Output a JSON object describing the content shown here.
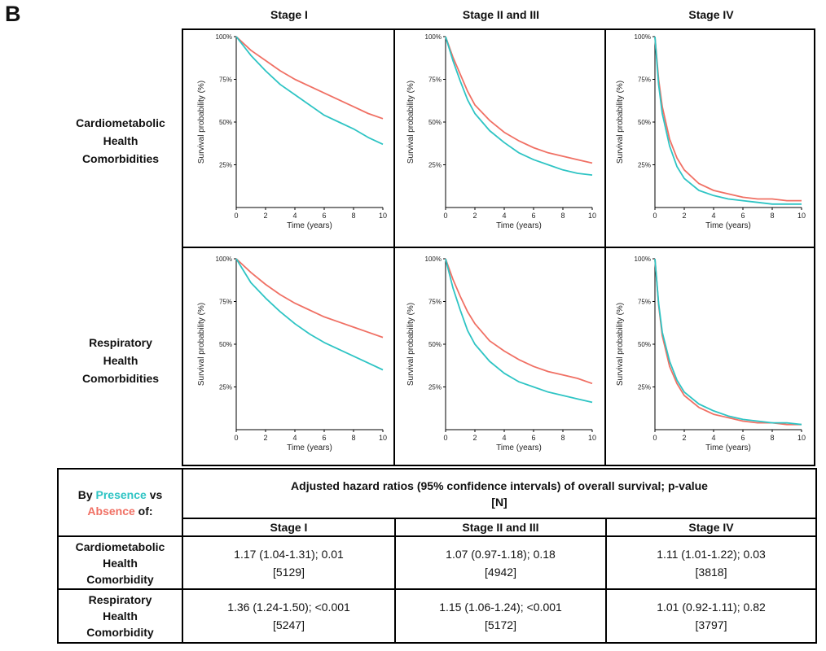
{
  "panel_letter": "B",
  "column_titles": [
    "Stage I",
    "Stage II and III",
    "Stage IV"
  ],
  "row_labels": [
    [
      "Cardiometabolic",
      "Health",
      "Comorbidities"
    ],
    [
      "Respiratory",
      "Health",
      "Comorbidities"
    ]
  ],
  "colors": {
    "presence": "#2ec4c4",
    "absence": "#f07064"
  },
  "chart_data": [
    {
      "type": "line",
      "row": "Cardiometabolic Health Comorbidities",
      "stage": "Stage I",
      "xlabel": "Time (years)",
      "ylabel": "Survival probability (%)",
      "xlim": [
        0,
        10
      ],
      "ylim": [
        0,
        100
      ],
      "xticks": [
        "0",
        "2",
        "4",
        "6",
        "8",
        "10"
      ],
      "yticks": [
        "25%",
        "50%",
        "75%",
        "100%"
      ],
      "x": [
        0,
        1,
        2,
        3,
        4,
        5,
        6,
        7,
        8,
        9,
        10
      ],
      "series": [
        {
          "name": "Presence",
          "color": "#2ec4c4",
          "values": [
            100,
            89,
            80,
            72,
            66,
            60,
            54,
            50,
            46,
            41,
            37
          ]
        },
        {
          "name": "Absence",
          "color": "#f07064",
          "values": [
            100,
            92,
            86,
            80,
            75,
            71,
            67,
            63,
            59,
            55,
            52
          ]
        }
      ]
    },
    {
      "type": "line",
      "row": "Cardiometabolic Health Comorbidities",
      "stage": "Stage II and III",
      "xlabel": "Time (years)",
      "ylabel": "Survival probability (%)",
      "xlim": [
        0,
        10
      ],
      "ylim": [
        0,
        100
      ],
      "xticks": [
        "0",
        "2",
        "4",
        "6",
        "8",
        "10"
      ],
      "yticks": [
        "25%",
        "50%",
        "75%",
        "100%"
      ],
      "x": [
        0,
        0.5,
        1,
        1.5,
        2,
        3,
        4,
        5,
        6,
        7,
        8,
        9,
        10
      ],
      "series": [
        {
          "name": "Presence",
          "color": "#2ec4c4",
          "values": [
            100,
            86,
            74,
            63,
            55,
            45,
            38,
            32,
            28,
            25,
            22,
            20,
            19
          ]
        },
        {
          "name": "Absence",
          "color": "#f07064",
          "values": [
            100,
            88,
            78,
            68,
            60,
            51,
            44,
            39,
            35,
            32,
            30,
            28,
            26
          ]
        }
      ]
    },
    {
      "type": "line",
      "row": "Cardiometabolic Health Comorbidities",
      "stage": "Stage IV",
      "xlabel": "Time (years)",
      "ylabel": "Survival probability (%)",
      "xlim": [
        0,
        10
      ],
      "ylim": [
        0,
        100
      ],
      "xticks": [
        "0",
        "2",
        "4",
        "6",
        "8",
        "10"
      ],
      "yticks": [
        "25%",
        "50%",
        "75%",
        "100%"
      ],
      "x": [
        0,
        0.25,
        0.5,
        1,
        1.5,
        2,
        3,
        4,
        5,
        6,
        7,
        8,
        9,
        10
      ],
      "series": [
        {
          "name": "Presence",
          "color": "#2ec4c4",
          "values": [
            100,
            72,
            55,
            36,
            24,
            17,
            10,
            7,
            5,
            4,
            3,
            2,
            2,
            2
          ]
        },
        {
          "name": "Absence",
          "color": "#f07064",
          "values": [
            100,
            75,
            59,
            40,
            29,
            22,
            14,
            10,
            8,
            6,
            5,
            5,
            4,
            4
          ]
        }
      ]
    },
    {
      "type": "line",
      "row": "Respiratory Health Comorbidities",
      "stage": "Stage I",
      "xlabel": "Time (years)",
      "ylabel": "Survival probability (%)",
      "xlim": [
        0,
        10
      ],
      "ylim": [
        0,
        100
      ],
      "xticks": [
        "0",
        "2",
        "4",
        "6",
        "8",
        "10"
      ],
      "yticks": [
        "25%",
        "50%",
        "75%",
        "100%"
      ],
      "x": [
        0,
        1,
        2,
        3,
        4,
        5,
        6,
        7,
        8,
        9,
        10
      ],
      "series": [
        {
          "name": "Presence",
          "color": "#2ec4c4",
          "values": [
            100,
            86,
            77,
            69,
            62,
            56,
            51,
            47,
            43,
            39,
            35
          ]
        },
        {
          "name": "Absence",
          "color": "#f07064",
          "values": [
            100,
            92,
            85,
            79,
            74,
            70,
            66,
            63,
            60,
            57,
            54
          ]
        }
      ]
    },
    {
      "type": "line",
      "row": "Respiratory Health Comorbidities",
      "stage": "Stage II and III",
      "xlabel": "Time (years)",
      "ylabel": "Survival probability (%)",
      "xlim": [
        0,
        10
      ],
      "ylim": [
        0,
        100
      ],
      "xticks": [
        "0",
        "2",
        "4",
        "6",
        "8",
        "10"
      ],
      "yticks": [
        "25%",
        "50%",
        "75%",
        "100%"
      ],
      "x": [
        0,
        0.5,
        1,
        1.5,
        2,
        3,
        4,
        5,
        6,
        7,
        8,
        9,
        10
      ],
      "series": [
        {
          "name": "Presence",
          "color": "#2ec4c4",
          "values": [
            100,
            83,
            70,
            58,
            50,
            40,
            33,
            28,
            25,
            22,
            20,
            18,
            16
          ]
        },
        {
          "name": "Absence",
          "color": "#f07064",
          "values": [
            100,
            88,
            78,
            69,
            62,
            52,
            46,
            41,
            37,
            34,
            32,
            30,
            27
          ]
        }
      ]
    },
    {
      "type": "line",
      "row": "Respiratory Health Comorbidities",
      "stage": "Stage IV",
      "xlabel": "Time (years)",
      "ylabel": "Survival probability (%)",
      "xlim": [
        0,
        10
      ],
      "ylim": [
        0,
        100
      ],
      "xticks": [
        "0",
        "2",
        "4",
        "6",
        "8",
        "10"
      ],
      "yticks": [
        "25%",
        "50%",
        "75%",
        "100%"
      ],
      "x": [
        0,
        0.25,
        0.5,
        1,
        1.5,
        2,
        3,
        4,
        5,
        6,
        7,
        8,
        9,
        10
      ],
      "series": [
        {
          "name": "Presence",
          "color": "#2ec4c4",
          "values": [
            100,
            74,
            57,
            40,
            29,
            22,
            15,
            11,
            8,
            6,
            5,
            4,
            4,
            3
          ]
        },
        {
          "name": "Absence",
          "color": "#f07064",
          "values": [
            100,
            73,
            55,
            37,
            27,
            20,
            13,
            9,
            7,
            5,
            4,
            4,
            3,
            3
          ]
        }
      ]
    }
  ],
  "table": {
    "by_prefix": "By",
    "presence_word": "Presence",
    "vs_word": "vs",
    "absence_word": "Absence",
    "of_word": "of:",
    "header_line1": "Adjusted hazard ratios (95% confidence intervals) of overall survival; p-value",
    "header_line2": "[N]",
    "stages": [
      "Stage I",
      "Stage II and III",
      "Stage IV"
    ],
    "rows": [
      {
        "label": [
          "Cardiometabolic",
          "Health",
          "Comorbidity"
        ],
        "cells": [
          {
            "hr": "1.17 (1.04-1.31); 0.01",
            "n": "[5129]"
          },
          {
            "hr": "1.07 (0.97-1.18); 0.18",
            "n": "[4942]"
          },
          {
            "hr": "1.11 (1.01-1.22); 0.03",
            "n": "[3818]"
          }
        ]
      },
      {
        "label": [
          "Respiratory",
          "Health",
          "Comorbidity"
        ],
        "cells": [
          {
            "hr": "1.36 (1.24-1.50); <0.001",
            "n": "[5247]"
          },
          {
            "hr": "1.15 (1.06-1.24); <0.001",
            "n": "[5172]"
          },
          {
            "hr": "1.01 (0.92-1.11); 0.82",
            "n": "[3797]"
          }
        ]
      }
    ]
  }
}
